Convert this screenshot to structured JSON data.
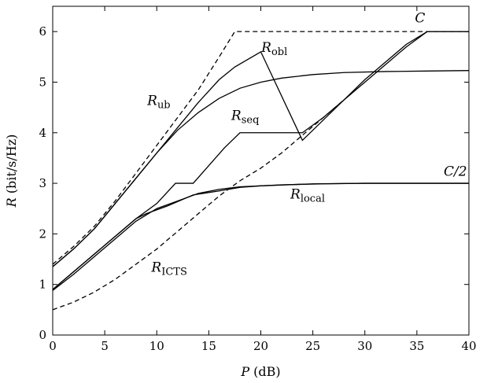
{
  "chart_data": {
    "type": "line",
    "xlabel": {
      "var": "P",
      "rest": " (dB)"
    },
    "ylabel": {
      "var": "R",
      "rest": " (bit/s/Hz)"
    },
    "xlim": [
      0,
      40
    ],
    "ylim": [
      0,
      6.5
    ],
    "xticks": [
      0,
      5,
      10,
      15,
      20,
      25,
      30,
      35,
      40
    ],
    "yticks": [
      0,
      1,
      2,
      3,
      4,
      5,
      6
    ],
    "xtick_labels": [
      "0",
      "5",
      "10",
      "15",
      "20",
      "25",
      "30",
      "35",
      "40"
    ],
    "ytick_labels": [
      "0",
      "1",
      "2",
      "3",
      "4",
      "5",
      "6"
    ],
    "grid": false,
    "legend": "none",
    "series": [
      {
        "key": "ub",
        "label_main": "R",
        "label_sub": "ub",
        "dashed": true,
        "points": [
          [
            0,
            1.4
          ],
          [
            2,
            1.75
          ],
          [
            4,
            2.15
          ],
          [
            6,
            2.65
          ],
          [
            8,
            3.2
          ],
          [
            10,
            3.75
          ],
          [
            12,
            4.3
          ],
          [
            14,
            4.85
          ],
          [
            16,
            5.5
          ],
          [
            17.5,
            6.0
          ],
          [
            20,
            6.0
          ],
          [
            30,
            6.0
          ],
          [
            40,
            6.0
          ]
        ]
      },
      {
        "key": "C",
        "label_main": "C",
        "label_sub": "",
        "dashed": false,
        "points": [
          [
            0,
            1.35
          ],
          [
            2,
            1.7
          ],
          [
            4,
            2.1
          ],
          [
            6,
            2.6
          ],
          [
            8,
            3.1
          ],
          [
            10,
            3.6
          ],
          [
            12,
            4.1
          ],
          [
            14,
            4.6
          ],
          [
            16,
            5.05
          ],
          [
            17.5,
            5.3
          ],
          [
            20,
            5.6
          ],
          [
            24,
            3.85
          ],
          [
            26,
            4.25
          ],
          [
            28,
            4.65
          ],
          [
            30,
            5.05
          ],
          [
            32,
            5.4
          ],
          [
            34,
            5.75
          ],
          [
            36,
            6.0
          ],
          [
            40,
            6.0
          ]
        ]
      },
      {
        "key": "obl",
        "label_main": "R",
        "label_sub": "obl",
        "dashed": false,
        "points": [
          [
            0,
            1.35
          ],
          [
            2,
            1.7
          ],
          [
            4,
            2.1
          ],
          [
            6,
            2.6
          ],
          [
            8,
            3.1
          ],
          [
            10,
            3.6
          ],
          [
            12,
            4.05
          ],
          [
            14,
            4.4
          ],
          [
            16,
            4.68
          ],
          [
            18,
            4.88
          ],
          [
            20,
            5.0
          ],
          [
            22,
            5.08
          ],
          [
            25,
            5.15
          ],
          [
            28,
            5.19
          ],
          [
            32,
            5.21
          ],
          [
            36,
            5.22
          ],
          [
            40,
            5.23
          ]
        ]
      },
      {
        "key": "seq",
        "label_main": "R",
        "label_sub": "seq",
        "dashed": false,
        "points": [
          [
            0,
            0.9
          ],
          [
            2,
            1.25
          ],
          [
            4,
            1.6
          ],
          [
            6,
            1.95
          ],
          [
            8,
            2.3
          ],
          [
            10,
            2.6
          ],
          [
            11.8,
            3.0
          ],
          [
            13.5,
            3.0
          ],
          [
            15,
            3.35
          ],
          [
            16.5,
            3.7
          ],
          [
            18,
            4.0
          ],
          [
            24,
            4.0
          ],
          [
            26,
            4.3
          ],
          [
            28,
            4.65
          ],
          [
            30,
            5.0
          ],
          [
            32,
            5.35
          ],
          [
            34,
            5.7
          ],
          [
            36,
            6.0
          ],
          [
            40,
            6.0
          ]
        ]
      },
      {
        "key": "C2",
        "label_main": "C/2",
        "label_sub": "",
        "dashed": false,
        "points": [
          [
            0,
            0.9
          ],
          [
            2,
            1.25
          ],
          [
            4,
            1.6
          ],
          [
            6,
            1.95
          ],
          [
            8,
            2.3
          ],
          [
            9,
            2.4
          ],
          [
            11,
            2.55
          ],
          [
            13.5,
            2.77
          ],
          [
            16,
            2.85
          ],
          [
            18,
            2.92
          ],
          [
            20,
            2.95
          ],
          [
            25,
            2.99
          ],
          [
            30,
            3.0
          ],
          [
            35,
            3.0
          ],
          [
            40,
            3.0
          ]
        ]
      },
      {
        "key": "local",
        "label_main": "R",
        "label_sub": "local",
        "dashed": false,
        "points": [
          [
            0,
            0.88
          ],
          [
            2,
            1.2
          ],
          [
            4,
            1.55
          ],
          [
            6,
            1.9
          ],
          [
            8,
            2.25
          ],
          [
            10,
            2.5
          ],
          [
            12,
            2.65
          ],
          [
            14,
            2.8
          ],
          [
            16,
            2.88
          ],
          [
            18,
            2.93
          ],
          [
            22,
            2.97
          ],
          [
            26,
            2.99
          ],
          [
            30,
            3.0
          ],
          [
            40,
            3.0
          ]
        ]
      },
      {
        "key": "icts",
        "label_main": "R",
        "label_sub": "ICTS",
        "dashed": true,
        "points": [
          [
            0,
            0.5
          ],
          [
            2,
            0.65
          ],
          [
            4,
            0.85
          ],
          [
            6,
            1.1
          ],
          [
            8,
            1.4
          ],
          [
            10,
            1.7
          ],
          [
            12,
            2.05
          ],
          [
            14,
            2.4
          ],
          [
            16,
            2.75
          ],
          [
            18,
            3.05
          ],
          [
            20,
            3.3
          ],
          [
            22,
            3.6
          ],
          [
            24,
            3.95
          ],
          [
            26,
            4.3
          ],
          [
            28,
            4.65
          ]
        ]
      }
    ],
    "annotations": [
      {
        "key": "ub",
        "main": "R",
        "sub": "ub",
        "x": 10.2,
        "y": 4.55
      },
      {
        "key": "obl",
        "main": "R",
        "sub": "obl",
        "x": 21.3,
        "y": 5.6
      },
      {
        "key": "seq",
        "main": "R",
        "sub": "seq",
        "x": 18.5,
        "y": 4.25
      },
      {
        "key": "C",
        "main": "C",
        "sub": "",
        "x": 35.3,
        "y": 6.18
      },
      {
        "key": "C2",
        "main": "C/2",
        "sub": "",
        "x": 38.7,
        "y": 3.15
      },
      {
        "key": "local",
        "main": "R",
        "sub": "local",
        "x": 24.5,
        "y": 2.7
      },
      {
        "key": "icts",
        "main": "R",
        "sub": "ICTS",
        "x": 11.2,
        "y": 1.25
      }
    ]
  }
}
